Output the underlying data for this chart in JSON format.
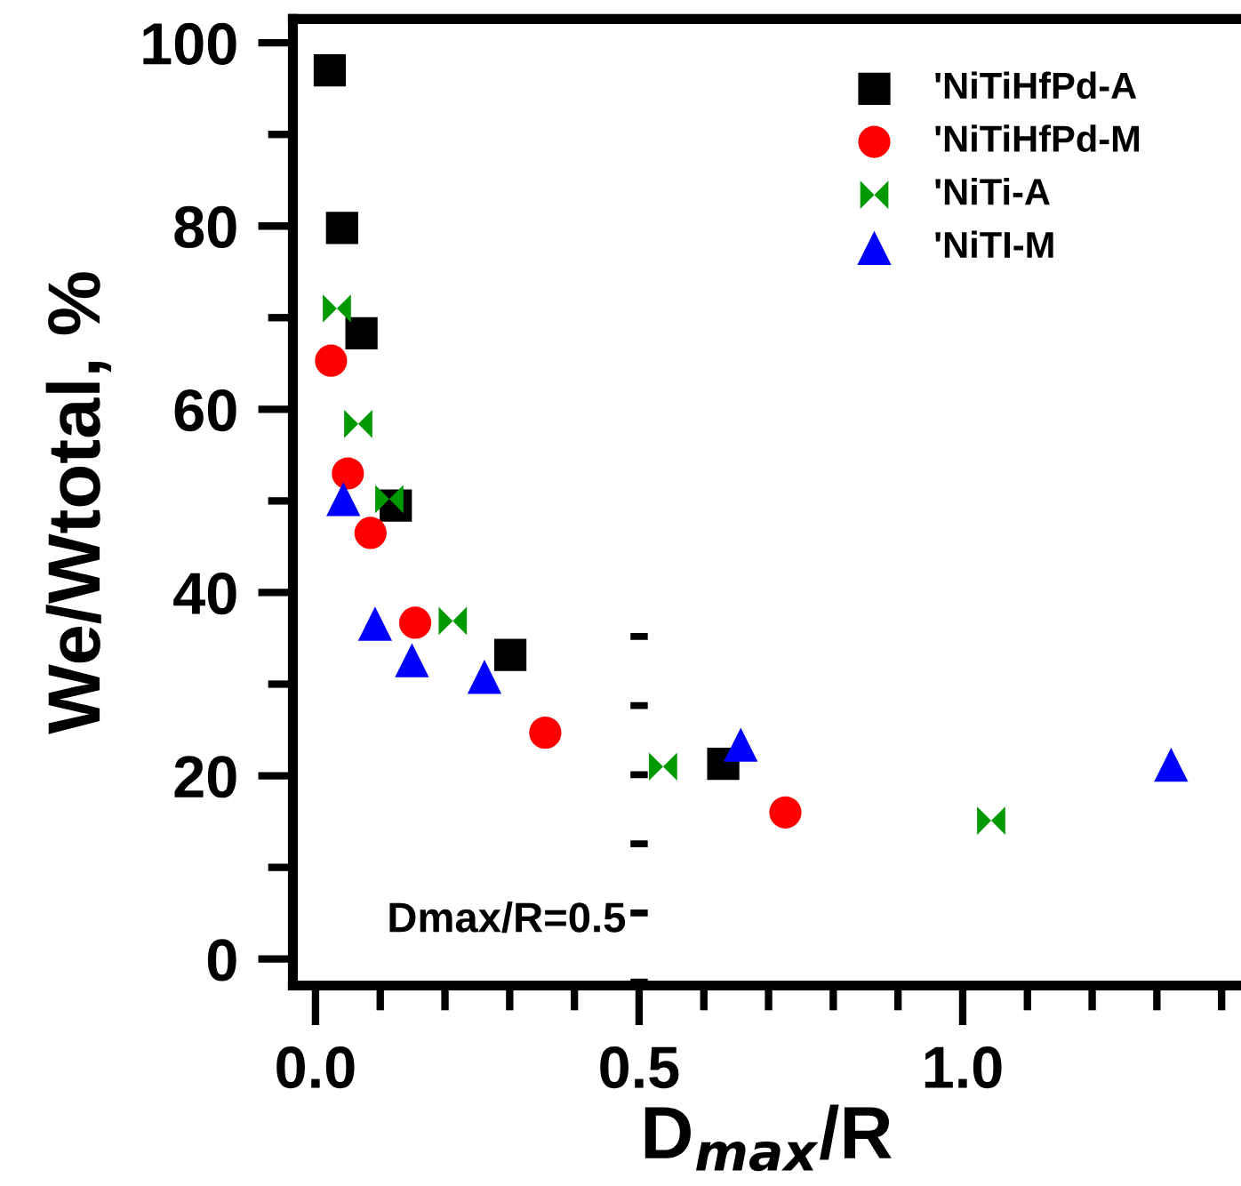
{
  "chart_data": {
    "type": "scatter",
    "xlabel": "D$_{max}$/R",
    "ylabel": "We/Wtotal, %",
    "xlim": [
      -0.035,
      1.43
    ],
    "ylim": [
      -2.9,
      102.6
    ],
    "xticks": [
      {
        "value": 0.0,
        "label": "0.0"
      },
      {
        "value": 0.1,
        "label": null
      },
      {
        "value": 0.2,
        "label": null
      },
      {
        "value": 0.3,
        "label": null
      },
      {
        "value": 0.4,
        "label": null
      },
      0.5,
      {
        "value": 0.6,
        "label": null
      },
      {
        "value": 0.7,
        "label": null
      },
      {
        "value": 0.8,
        "label": null
      },
      {
        "value": 0.9,
        "label": null
      },
      {
        "value": 1.0,
        "label": "1.0"
      },
      {
        "value": 1.1,
        "label": null
      },
      {
        "value": 1.2,
        "label": null
      },
      {
        "value": 1.3,
        "label": null
      },
      {
        "value": 1.4,
        "label": null
      }
    ],
    "yticks": [
      0,
      {
        "value": 10,
        "label": null
      },
      20,
      {
        "value": 30,
        "label": null
      },
      40,
      {
        "value": 50,
        "label": null
      },
      60,
      {
        "value": 70,
        "label": null
      },
      80,
      {
        "value": 90,
        "label": null
      },
      100
    ],
    "grid": false,
    "legend": "top right",
    "ref_lines": [
      {
        "axis": "x",
        "value": 0.5,
        "label": "Dmax/R=0.5",
        "color": "#000000",
        "line_style": "dashed"
      }
    ],
    "series": [
      {
        "name": "'NiTiHfPd-A",
        "color": "#000000",
        "marker": "square",
        "x": [
          0.022,
          0.041,
          0.071,
          0.124,
          0.301,
          0.63
        ],
        "values": [
          97.0,
          79.8,
          68.3,
          49.5,
          33.2,
          21.3
        ]
      },
      {
        "name": "'NiTiHfPd-M",
        "color": "#ff0000",
        "marker": "circle",
        "x": [
          0.024,
          0.05,
          0.085,
          0.154,
          0.355,
          0.726
        ],
        "values": [
          65.3,
          53.0,
          46.5,
          36.7,
          24.7,
          16.0
        ]
      },
      {
        "name": "'NiTi-A",
        "color": "#009900",
        "x": [
          0.033,
          0.066,
          0.114,
          0.212,
          0.537,
          1.044
        ],
        "values": [
          71.0,
          58.4,
          50.2,
          36.9,
          21.0,
          15.1
        ]
      },
      {
        "name": "'NiTI-M",
        "color": "#0000ff",
        "marker": "triangle",
        "x": [
          0.043,
          0.092,
          0.149,
          0.261,
          0.657,
          1.322
        ],
        "values": [
          50.2,
          36.6,
          32.6,
          30.8,
          23.4,
          21.2
        ]
      }
    ]
  }
}
